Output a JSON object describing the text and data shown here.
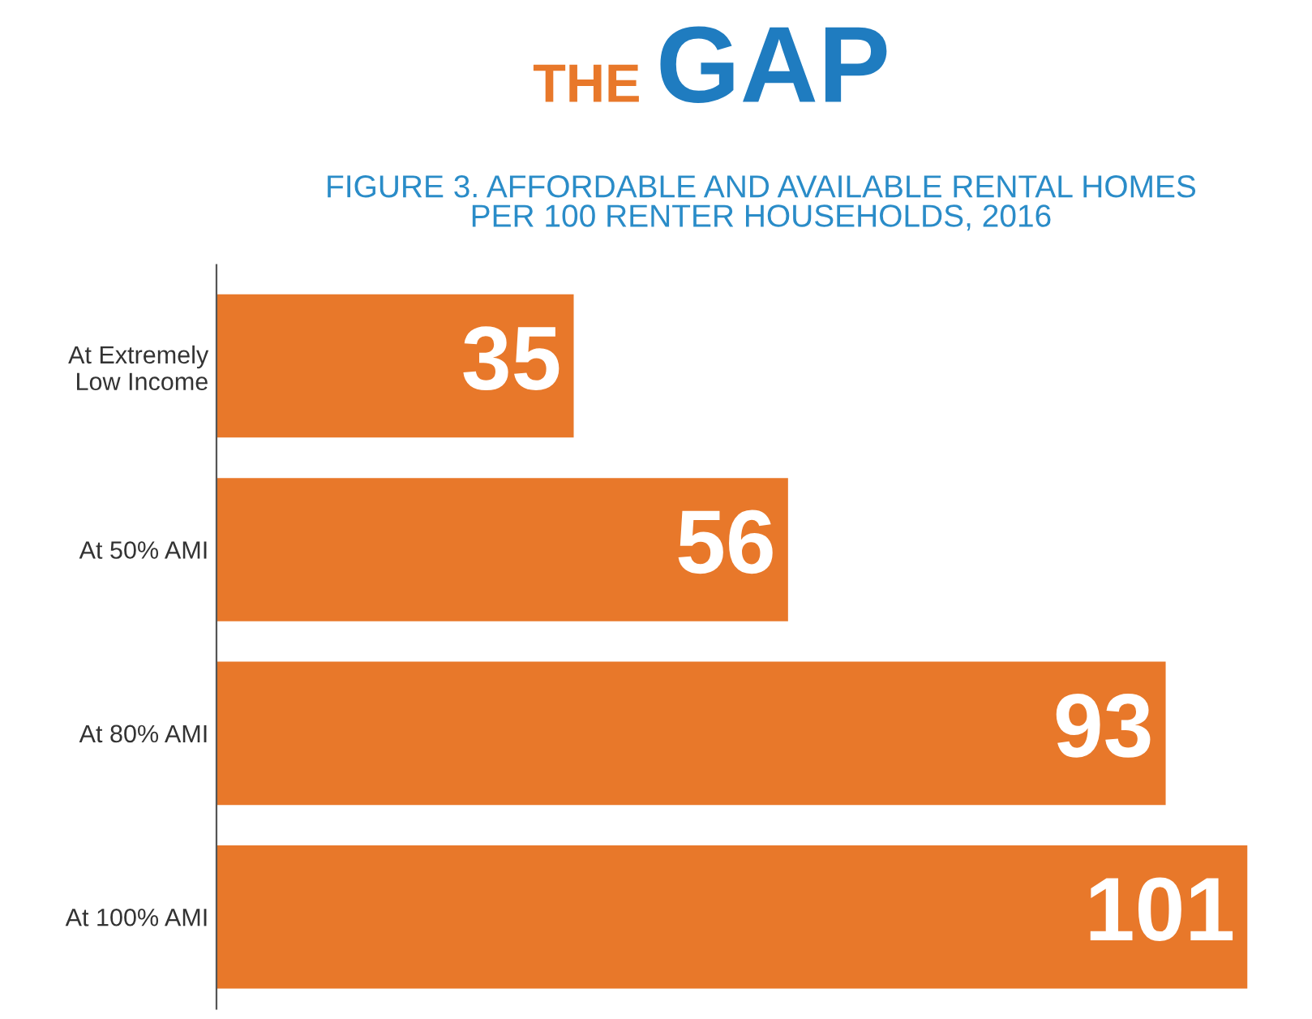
{
  "chart_data": {
    "type": "bar",
    "orientation": "horizontal",
    "title": "THE GAP",
    "subtitle": "FIGURE 3. AFFORDABLE AND AVAILABLE RENTAL HOMES\nPER 100 RENTER HOUSEHOLDS, 2016",
    "categories": [
      "At Extremely\nLow Income",
      "At 50% AMI",
      "At 80% AMI",
      "At 100% AMI"
    ],
    "values": [
      35,
      56,
      93,
      101
    ],
    "color": "#e8782a",
    "data_labels": true,
    "tick_labels": "y",
    "grid": false,
    "legend": false
  }
}
